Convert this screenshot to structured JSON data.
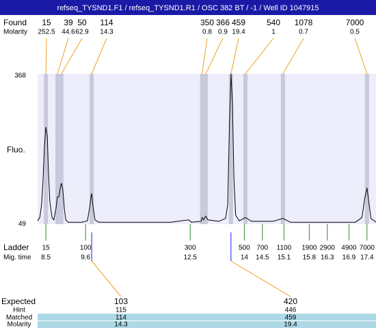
{
  "chart_data": {
    "type": "line",
    "title": "refseq_TYSND1.F1 / refseq_TYSND1.R1 / OSC 382 BT / -1 / Well ID 1047915",
    "y_label": "Fluo.",
    "ylim": [
      49,
      368
    ],
    "yticks": [
      49,
      368
    ],
    "xlim": [
      8.27,
      17.65
    ],
    "color": "#000000",
    "x": [
      8.27,
      8.33,
      8.38,
      8.42,
      8.46,
      8.5,
      8.54,
      8.57,
      8.61,
      8.67,
      8.72,
      8.78,
      8.82,
      8.86,
      8.9,
      8.93,
      8.97,
      9.01,
      9.05,
      9.12,
      9.5,
      9.65,
      9.71,
      9.75,
      9.77,
      9.8,
      9.86,
      9.97,
      11.96,
      12.46,
      12.53,
      12.8,
      12.83,
      12.87,
      12.93,
      12.99,
      13.29,
      13.48,
      13.54,
      13.59,
      13.63,
      13.67,
      13.71,
      13.76,
      13.86,
      14.03,
      14.2,
      14.8,
      15.07,
      15.28,
      17.08,
      17.26,
      17.34,
      17.4,
      17.46,
      17.51,
      17.65
    ],
    "values": [
      56,
      63,
      90,
      140,
      213,
      255,
      235,
      162,
      97,
      63,
      58,
      82,
      107,
      107,
      126,
      136,
      122,
      82,
      58,
      53,
      53,
      56,
      82,
      107,
      114,
      90,
      58,
      53,
      53,
      58,
      53,
      55,
      63,
      58,
      66,
      58,
      55,
      61,
      90,
      264,
      368,
      307,
      148,
      68,
      56,
      63,
      55,
      55,
      61,
      53,
      53,
      63,
      104,
      126,
      90,
      61,
      53
    ],
    "found_label": "Found",
    "molarity_label": "Molarity",
    "found": {
      "sizes": [
        15,
        39,
        50,
        114,
        350,
        366,
        459,
        540,
        1078,
        7000
      ],
      "molarity": [
        252.5,
        44.6,
        62.9,
        14.3,
        0.8,
        0.9,
        19.4,
        1,
        0.7,
        0.5
      ],
      "times": [
        8.5,
        8.82,
        8.93,
        9.77,
        12.83,
        12.93,
        13.63,
        14.03,
        15.07,
        17.4
      ]
    },
    "ladder_label": "Ladder",
    "time_label": "Mig. time",
    "ladder": {
      "sizes": [
        15,
        100,
        300,
        500,
        700,
        1100,
        1900,
        2900,
        4900,
        7000
      ],
      "times": [
        8.5,
        9.6,
        12.5,
        14,
        14.5,
        15.1,
        15.8,
        16.3,
        16.9,
        17.4
      ]
    },
    "row_labels": [
      "Expected",
      "Hint",
      "Matched",
      "Molarity"
    ],
    "expected": {
      "expected": [
        103,
        420
      ],
      "hint": [
        115,
        446
      ],
      "matched": [
        114,
        459
      ],
      "molarity": [
        14.3,
        19.4
      ]
    }
  }
}
